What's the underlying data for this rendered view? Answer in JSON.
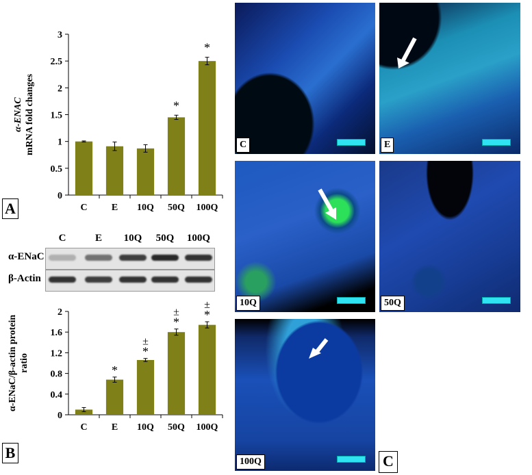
{
  "panel_letters": {
    "a": "A",
    "b": "B",
    "c": "C"
  },
  "chart_data": [
    {
      "type": "bar",
      "categories": [
        "C",
        "E",
        "10Q",
        "50Q",
        "100Q"
      ],
      "values": [
        1.0,
        0.91,
        0.87,
        1.45,
        2.5
      ],
      "errors": [
        0.01,
        0.08,
        0.07,
        0.04,
        0.07
      ],
      "annotations": [
        "",
        "",
        "",
        "*",
        "*"
      ],
      "ylabel_line1": "α-ENAC",
      "ylabel_line2": "mRNA fold changes",
      "ylim": [
        0,
        3
      ],
      "yticks": [
        "0",
        "0.5",
        "1",
        "1.5",
        "2",
        "2.5",
        "3"
      ],
      "bar_color": "#808018",
      "grid": false
    },
    {
      "type": "bar",
      "categories": [
        "C",
        "E",
        "10Q",
        "50Q",
        "100Q"
      ],
      "values": [
        0.1,
        0.68,
        1.06,
        1.6,
        1.74
      ],
      "errors": [
        0.04,
        0.05,
        0.03,
        0.06,
        0.06
      ],
      "annotations_star": [
        "",
        "*",
        "*",
        "*",
        "*"
      ],
      "annotations_pm": [
        "",
        "",
        "±",
        "±",
        "±"
      ],
      "ylabel_line1": "α-ENaC/β-actin protein",
      "ylabel_line2": "ratio",
      "ylim": [
        0,
        2
      ],
      "yticks": [
        "0",
        "0.4",
        "0.8",
        "1.2",
        "1.6",
        "2"
      ],
      "bar_color": "#808018",
      "grid": false
    }
  ],
  "blot": {
    "lanes": [
      "C",
      "E",
      "10Q",
      "50Q",
      "100Q"
    ],
    "rows": [
      "α-ENaC",
      "β-Actin"
    ]
  },
  "micrographs": [
    {
      "label": "C"
    },
    {
      "label": "E"
    },
    {
      "label": "10Q"
    },
    {
      "label": "50Q"
    },
    {
      "label": "100Q"
    }
  ]
}
